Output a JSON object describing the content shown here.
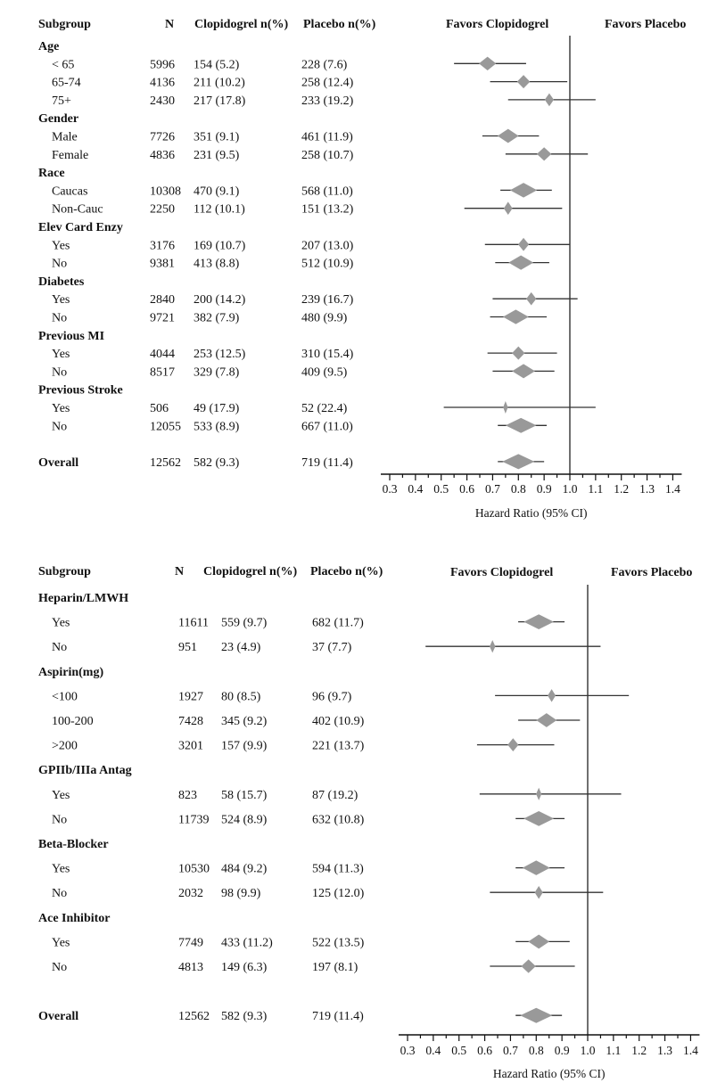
{
  "chart_data": [
    {
      "type": "forest",
      "columns": {
        "subgroup": "Subgroup",
        "n": "N",
        "clopidogrel": "Clopidogrel n(%)",
        "placebo": "Placebo n(%)"
      },
      "favors_left": "Favors Clopidogrel",
      "favors_right": "Favors Placebo",
      "xlabel": "Hazard Ratio (95% CI)",
      "xlim": [
        0.3,
        1.4
      ],
      "xticks": [
        "0.3",
        "0.4",
        "0.5",
        "0.6",
        "0.7",
        "0.8",
        "0.9",
        "1.0",
        "1.1",
        "1.2",
        "1.3",
        "1.4"
      ],
      "reference_line": 1.0,
      "marker_color": "#999999",
      "rows": [
        {
          "kind": "group",
          "label": "Age"
        },
        {
          "kind": "item",
          "label": "< 65",
          "n": "5996",
          "clop": "154 (5.2)",
          "placebo": "228 (7.6)",
          "hr": 0.68,
          "lo": 0.55,
          "hi": 0.83
        },
        {
          "kind": "item",
          "label": "65-74",
          "n": "4136",
          "clop": "211 (10.2)",
          "placebo": "258 (12.4)",
          "hr": 0.82,
          "lo": 0.69,
          "hi": 0.99
        },
        {
          "kind": "item",
          "label": "75+",
          "n": "2430",
          "clop": "217 (17.8)",
          "placebo": "233 (19.2)",
          "hr": 0.92,
          "lo": 0.76,
          "hi": 1.1
        },
        {
          "kind": "group",
          "label": "Gender"
        },
        {
          "kind": "item",
          "label": "Male",
          "n": "7726",
          "clop": "351 (9.1)",
          "placebo": "461 (11.9)",
          "hr": 0.76,
          "lo": 0.66,
          "hi": 0.88
        },
        {
          "kind": "item",
          "label": "Female",
          "n": "4836",
          "clop": "231 (9.5)",
          "placebo": "258 (10.7)",
          "hr": 0.9,
          "lo": 0.75,
          "hi": 1.07
        },
        {
          "kind": "group",
          "label": "Race"
        },
        {
          "kind": "item",
          "label": "Caucas",
          "n": "10308",
          "clop": "470 (9.1)",
          "placebo": "568 (11.0)",
          "hr": 0.82,
          "lo": 0.73,
          "hi": 0.93
        },
        {
          "kind": "item",
          "label": "Non-Cauc",
          "n": "2250",
          "clop": "112 (10.1)",
          "placebo": "151 (13.2)",
          "hr": 0.76,
          "lo": 0.59,
          "hi": 0.97
        },
        {
          "kind": "group",
          "label": "Elev Card Enzy"
        },
        {
          "kind": "item",
          "label": "Yes",
          "n": "3176",
          "clop": "169 (10.7)",
          "placebo": "207 (13.0)",
          "hr": 0.82,
          "lo": 0.67,
          "hi": 1.0
        },
        {
          "kind": "item",
          "label": "No",
          "n": "9381",
          "clop": "413 (8.8)",
          "placebo": "512 (10.9)",
          "hr": 0.81,
          "lo": 0.71,
          "hi": 0.92
        },
        {
          "kind": "group",
          "label": "Diabetes"
        },
        {
          "kind": "item",
          "label": "Yes",
          "n": "2840",
          "clop": "200 (14.2)",
          "placebo": "239 (16.7)",
          "hr": 0.85,
          "lo": 0.7,
          "hi": 1.03
        },
        {
          "kind": "item",
          "label": "No",
          "n": "9721",
          "clop": "382 (7.9)",
          "placebo": "480 (9.9)",
          "hr": 0.79,
          "lo": 0.69,
          "hi": 0.91
        },
        {
          "kind": "group",
          "label": "Previous MI"
        },
        {
          "kind": "item",
          "label": "Yes",
          "n": "4044",
          "clop": "253 (12.5)",
          "placebo": "310 (15.4)",
          "hr": 0.8,
          "lo": 0.68,
          "hi": 0.95
        },
        {
          "kind": "item",
          "label": "No",
          "n": "8517",
          "clop": "329 (7.8)",
          "placebo": "409 (9.5)",
          "hr": 0.82,
          "lo": 0.7,
          "hi": 0.94
        },
        {
          "kind": "group",
          "label": "Previous Stroke"
        },
        {
          "kind": "item",
          "label": "Yes",
          "n": "506",
          "clop": "49 (17.9)",
          "placebo": "52 (22.4)",
          "hr": 0.75,
          "lo": 0.51,
          "hi": 1.1
        },
        {
          "kind": "item",
          "label": "No",
          "n": "12055",
          "clop": "533 (8.9)",
          "placebo": "667 (11.0)",
          "hr": 0.81,
          "lo": 0.72,
          "hi": 0.91
        },
        {
          "kind": "spacer"
        },
        {
          "kind": "overall",
          "label": "Overall",
          "n": "12562",
          "clop": "582 (9.3)",
          "placebo": "719 (11.4)",
          "hr": 0.8,
          "lo": 0.72,
          "hi": 0.9
        }
      ]
    },
    {
      "type": "forest",
      "columns": {
        "subgroup": "Subgroup",
        "n": "N",
        "clopidogrel": "Clopidogrel n(%)",
        "placebo": "Placebo n(%)"
      },
      "favors_left": "Favors Clopidogrel",
      "favors_right": "Favors Placebo",
      "xlabel": "Hazard Ratio (95% CI)",
      "xlim": [
        0.3,
        1.4
      ],
      "xticks": [
        "0.3",
        "0.4",
        "0.5",
        "0.6",
        "0.7",
        "0.8",
        "0.9",
        "1.0",
        "1.1",
        "1.2",
        "1.3",
        "1.4"
      ],
      "reference_line": 1.0,
      "marker_color": "#999999",
      "rows": [
        {
          "kind": "group",
          "label": "Heparin/LMWH"
        },
        {
          "kind": "item",
          "label": "Yes",
          "n": "11611",
          "clop": "559 (9.7)",
          "placebo": "682 (11.7)",
          "hr": 0.81,
          "lo": 0.73,
          "hi": 0.91
        },
        {
          "kind": "item",
          "label": "No",
          "n": "951",
          "clop": "23 (4.9)",
          "placebo": "37 (7.7)",
          "hr": 0.63,
          "lo": 0.37,
          "hi": 1.05
        },
        {
          "kind": "group",
          "label": "Aspirin(mg)"
        },
        {
          "kind": "item",
          "label": "<100",
          "n": "1927",
          "clop": "80 (8.5)",
          "placebo": "96 (9.7)",
          "hr": 0.86,
          "lo": 0.64,
          "hi": 1.16
        },
        {
          "kind": "item",
          "label": "100-200",
          "n": "7428",
          "clop": "345 (9.2)",
          "placebo": "402 (10.9)",
          "hr": 0.84,
          "lo": 0.73,
          "hi": 0.97
        },
        {
          "kind": "item",
          "label": ">200",
          "n": "3201",
          "clop": "157 (9.9)",
          "placebo": "221 (13.7)",
          "hr": 0.71,
          "lo": 0.57,
          "hi": 0.87
        },
        {
          "kind": "group",
          "label": "GPIIb/IIIa Antag"
        },
        {
          "kind": "item",
          "label": "Yes",
          "n": "823",
          "clop": "58 (15.7)",
          "placebo": "87 (19.2)",
          "hr": 0.81,
          "lo": 0.58,
          "hi": 1.13
        },
        {
          "kind": "item",
          "label": "No",
          "n": "11739",
          "clop": "524 (8.9)",
          "placebo": "632 (10.8)",
          "hr": 0.81,
          "lo": 0.72,
          "hi": 0.91
        },
        {
          "kind": "group",
          "label": "Beta-Blocker"
        },
        {
          "kind": "item",
          "label": "Yes",
          "n": "10530",
          "clop": "484 (9.2)",
          "placebo": "594 (11.3)",
          "hr": 0.8,
          "lo": 0.72,
          "hi": 0.91
        },
        {
          "kind": "item",
          "label": "No",
          "n": "2032",
          "clop": "98 (9.9)",
          "placebo": "125 (12.0)",
          "hr": 0.81,
          "lo": 0.62,
          "hi": 1.06
        },
        {
          "kind": "group",
          "label": "Ace Inhibitor"
        },
        {
          "kind": "item",
          "label": "Yes",
          "n": "7749",
          "clop": "433 (11.2)",
          "placebo": "522 (13.5)",
          "hr": 0.81,
          "lo": 0.72,
          "hi": 0.93
        },
        {
          "kind": "item",
          "label": "No",
          "n": "4813",
          "clop": "149 (6.3)",
          "placebo": "197 (8.1)",
          "hr": 0.77,
          "lo": 0.62,
          "hi": 0.95
        },
        {
          "kind": "spacer"
        },
        {
          "kind": "overall",
          "label": "Overall",
          "n": "12562",
          "clop": "582 (9.3)",
          "placebo": "719 (11.4)",
          "hr": 0.8,
          "lo": 0.72,
          "hi": 0.9
        }
      ]
    }
  ]
}
